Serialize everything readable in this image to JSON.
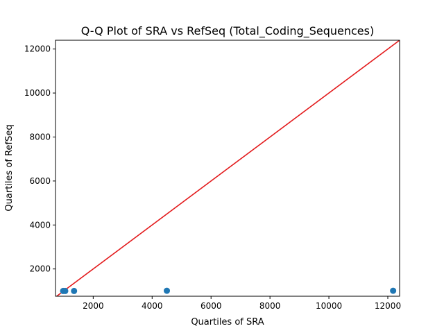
{
  "chart_data": {
    "type": "scatter",
    "title": "Q-Q Plot of SRA vs RefSeq (Total_Coding_Sequences)",
    "xlabel": "Quartiles of SRA",
    "ylabel": "Quartiles of RefSeq",
    "xlim": [
      720,
      12400
    ],
    "ylim": [
      760,
      12400
    ],
    "x_ticks": [
      2000,
      4000,
      6000,
      8000,
      10000,
      12000
    ],
    "y_ticks": [
      2000,
      4000,
      6000,
      8000,
      10000,
      12000
    ],
    "x_tick_labels": [
      "2000",
      "4000",
      "6000",
      "8000",
      "10000",
      "12000"
    ],
    "y_tick_labels": [
      "2000",
      "4000",
      "6000",
      "8000",
      "10000",
      "12000"
    ],
    "grid": false,
    "series": [
      {
        "kind": "points",
        "color": "#1f77b4",
        "points": [
          {
            "x": 980,
            "y": 1000
          },
          {
            "x": 1050,
            "y": 1000
          },
          {
            "x": 1350,
            "y": 1000
          },
          {
            "x": 4500,
            "y": 1010
          },
          {
            "x": 12180,
            "y": 1010
          }
        ]
      },
      {
        "kind": "reference-line",
        "color": "#e31a1c",
        "points": [
          {
            "x": 720,
            "y": 720
          },
          {
            "x": 12400,
            "y": 12400
          }
        ]
      }
    ]
  }
}
